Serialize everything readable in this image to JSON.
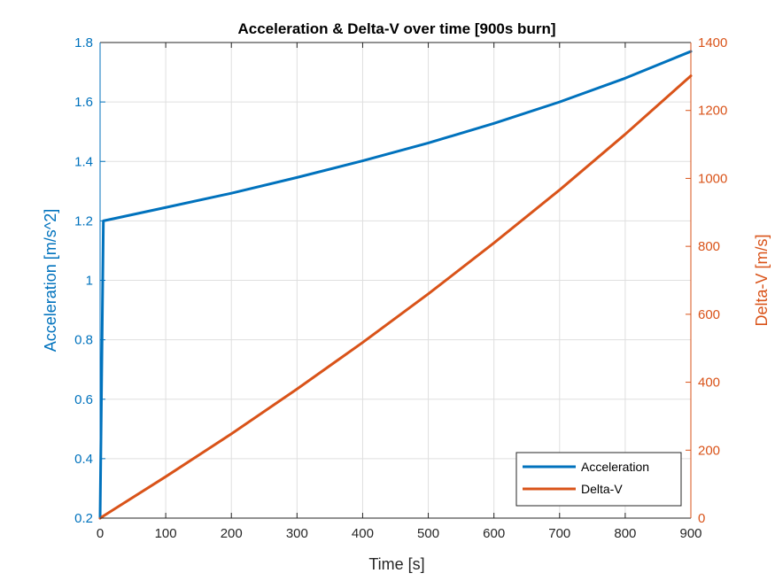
{
  "chart_data": {
    "type": "line",
    "title": "Acceleration & Delta-V over time [900s burn]",
    "xlabel": "Time [s]",
    "ylabel_left": "Acceleration [m/s^2]",
    "ylabel_right": "Delta-V [m/s]",
    "xlim": [
      0,
      900
    ],
    "ylim_left": [
      0.2,
      1.8
    ],
    "ylim_right": [
      0,
      1400
    ],
    "xticks": [
      "0",
      "100",
      "200",
      "300",
      "400",
      "500",
      "600",
      "700",
      "800",
      "900"
    ],
    "yticks_left": [
      "0.2",
      "0.4",
      "0.6",
      "0.8",
      "1",
      "1.2",
      "1.4",
      "1.6",
      "1.8"
    ],
    "yticks_right": [
      "0",
      "200",
      "400",
      "600",
      "800",
      "1000",
      "1200",
      "1400"
    ],
    "grid": true,
    "legend_position": "bottom-right",
    "colors": {
      "left_axis": "#0072BD",
      "right_axis": "#D95319",
      "axis_dark": "#262626"
    },
    "series": [
      {
        "name": "Acceleration",
        "axis": "left",
        "color": "#0072BD",
        "x": [
          0,
          5,
          100,
          200,
          300,
          400,
          500,
          600,
          700,
          800,
          900
        ],
        "values": [
          0.2,
          1.2,
          1.245,
          1.293,
          1.346,
          1.402,
          1.462,
          1.528,
          1.6,
          1.68,
          1.77
        ]
      },
      {
        "name": "Delta-V",
        "axis": "right",
        "color": "#D95319",
        "x": [
          0,
          100,
          200,
          300,
          400,
          500,
          600,
          700,
          800,
          900
        ],
        "values": [
          0,
          122,
          248,
          380,
          517,
          660,
          810,
          966,
          1130,
          1302
        ]
      }
    ]
  }
}
